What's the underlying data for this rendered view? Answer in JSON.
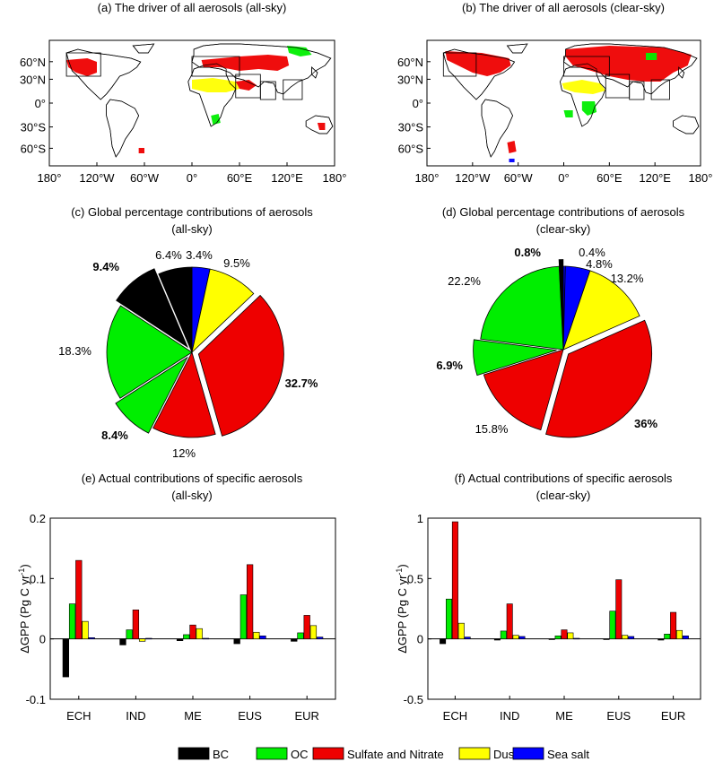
{
  "colors": {
    "BC": "#000000",
    "OC": "#00ee00",
    "SN": "#ee0000",
    "Dust": "#ffff00",
    "SeaSalt": "#0000ff"
  },
  "maps": {
    "a": {
      "title": "(a) The driver of all aerosols (all-sky)"
    },
    "b": {
      "title": "(b) The driver of all aerosols (clear-sky)"
    },
    "lat_ticks": [
      "60°N",
      "30°N",
      "0°",
      "30°S",
      "60°S"
    ],
    "lon_ticks": [
      "180°",
      "120°W",
      "60°W",
      "0°",
      "60°E",
      "120°E",
      "180°"
    ]
  },
  "chart_data": [
    {
      "type": "pie",
      "title": "(c) Global percentage contributions of aerosols",
      "subtitle": "(all-sky)",
      "slices": [
        {
          "series": "Sea salt",
          "label": "3.4%",
          "value": 3.4,
          "bold": false,
          "exploded": false
        },
        {
          "series": "Dust",
          "label": "9.5%",
          "value": 9.5,
          "bold": false,
          "exploded": false
        },
        {
          "series": "Sulfate and Nitrate",
          "label": "32.7%",
          "value": 32.7,
          "bold": true,
          "exploded": true
        },
        {
          "series": "Sulfate and Nitrate",
          "label": "12%",
          "value": 12,
          "bold": false,
          "exploded": false
        },
        {
          "series": "OC",
          "label": "8.4%",
          "value": 8.4,
          "bold": true,
          "exploded": true
        },
        {
          "series": "OC",
          "label": "18.3%",
          "value": 18.3,
          "bold": false,
          "exploded": false
        },
        {
          "series": "BC",
          "label": "9.4%",
          "value": 9.4,
          "bold": true,
          "exploded": true
        },
        {
          "series": "BC",
          "label": "6.4%",
          "value": 6.4,
          "bold": false,
          "exploded": false
        }
      ]
    },
    {
      "type": "pie",
      "title": "(d) Global percentage contributions of aerosols",
      "subtitle": "(clear-sky)",
      "slices": [
        {
          "series": "Sea salt",
          "label": "0.4%",
          "value": 0.4,
          "bold": false,
          "exploded": false
        },
        {
          "series": "Sea salt",
          "label": "4.8%",
          "value": 4.8,
          "bold": false,
          "exploded": false
        },
        {
          "series": "Dust",
          "label": "13.2%",
          "value": 13.2,
          "bold": false,
          "exploded": false
        },
        {
          "series": "Sulfate and Nitrate",
          "label": "36%",
          "value": 36,
          "bold": true,
          "exploded": true
        },
        {
          "series": "Sulfate and Nitrate",
          "label": "15.8%",
          "value": 15.8,
          "bold": false,
          "exploded": false
        },
        {
          "series": "OC",
          "label": "6.9%",
          "value": 6.9,
          "bold": true,
          "exploded": true
        },
        {
          "series": "OC",
          "label": "22.2%",
          "value": 22.2,
          "bold": false,
          "exploded": false
        },
        {
          "series": "BC",
          "label": "0.8%",
          "value": 0.8,
          "bold": true,
          "exploded": true
        }
      ]
    },
    {
      "type": "bar",
      "title": "(e) Actual contributions of specific aerosols",
      "subtitle": "(all-sky)",
      "ylabel": "ΔGPP (Pg C yr",
      "ylabel_sup": "-1",
      "ylabel_close": ")",
      "ylim": [
        -0.1,
        0.2
      ],
      "yticks": [
        -0.1,
        0,
        0.1,
        0.2
      ],
      "ytick_labels": [
        "-0.1",
        "0",
        "0.1",
        "0.2"
      ],
      "categories": [
        "ECH",
        "IND",
        "ME",
        "EUS",
        "EUR"
      ],
      "series": [
        {
          "name": "BC",
          "values": [
            -0.063,
            -0.01,
            -0.003,
            -0.008,
            -0.004
          ]
        },
        {
          "name": "OC",
          "values": [
            0.058,
            0.015,
            0.007,
            0.073,
            0.01
          ]
        },
        {
          "name": "Sulfate and Nitrate",
          "values": [
            0.13,
            0.048,
            0.023,
            0.123,
            0.039
          ]
        },
        {
          "name": "Dust",
          "values": [
            0.029,
            -0.004,
            0.017,
            0.011,
            0.022
          ]
        },
        {
          "name": "Sea salt",
          "values": [
            0.002,
            0.001,
            0.001,
            0.005,
            0.003
          ]
        }
      ]
    },
    {
      "type": "bar",
      "title": "(f) Actual contributions of specific aerosols",
      "subtitle": "(clear-sky)",
      "ylabel": "ΔGPP (Pg C yr",
      "ylabel_sup": "-1",
      "ylabel_close": ")",
      "ylim": [
        -0.5,
        1.0
      ],
      "yticks": [
        -0.5,
        0,
        0.5,
        1.0
      ],
      "ytick_labels": [
        "-0.5",
        "0",
        "0.5",
        "1"
      ],
      "categories": [
        "ECH",
        "IND",
        "ME",
        "EUS",
        "EUR"
      ],
      "series": [
        {
          "name": "BC",
          "values": [
            -0.04,
            -0.01,
            -0.005,
            -0.005,
            -0.01
          ]
        },
        {
          "name": "OC",
          "values": [
            0.33,
            0.065,
            0.025,
            0.23,
            0.04
          ]
        },
        {
          "name": "Sulfate and Nitrate",
          "values": [
            0.97,
            0.29,
            0.075,
            0.49,
            0.22
          ]
        },
        {
          "name": "Dust",
          "values": [
            0.13,
            0.03,
            0.05,
            0.03,
            0.07
          ]
        },
        {
          "name": "Sea salt",
          "values": [
            0.015,
            0.02,
            0.005,
            0.02,
            0.025
          ]
        }
      ]
    }
  ],
  "legend": [
    {
      "key": "BC",
      "label": "BC"
    },
    {
      "key": "OC",
      "label": "OC"
    },
    {
      "key": "SN",
      "label": "Sulfate and Nitrate"
    },
    {
      "key": "Dust",
      "label": "Dust"
    },
    {
      "key": "SeaSalt",
      "label": "Sea salt"
    }
  ]
}
